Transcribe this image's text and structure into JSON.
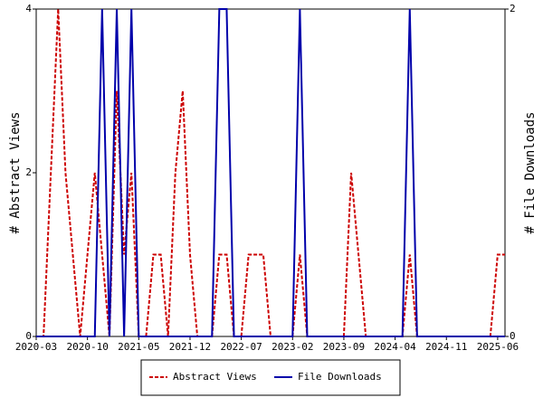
{
  "chart_data": {
    "type": "line",
    "categories": [
      "2020-03",
      null,
      null,
      null,
      null,
      null,
      null,
      "2020-10",
      null,
      null,
      null,
      null,
      null,
      null,
      "2021-05",
      null,
      null,
      null,
      null,
      null,
      null,
      "2021-12",
      null,
      null,
      null,
      null,
      null,
      null,
      "2022-07",
      null,
      null,
      null,
      null,
      null,
      null,
      "2023-02",
      null,
      null,
      null,
      null,
      null,
      null,
      "2023-09",
      null,
      null,
      null,
      null,
      null,
      null,
      "2024-04",
      null,
      null,
      null,
      null,
      null,
      null,
      "2024-11",
      null,
      null,
      null,
      null,
      null,
      null,
      "2025-06",
      null
    ],
    "ylabel": "# Abstract Views",
    "y2label": "# File Downloads",
    "ylim": [
      0,
      4
    ],
    "yticks": [
      0,
      2,
      4
    ],
    "y2lim": [
      0,
      2
    ],
    "y2ticks": [
      0,
      2
    ],
    "legend": "bottom",
    "series": [
      {
        "name": "Abstract Views",
        "color": "#cc0000",
        "dash": true,
        "values": [
          0,
          0,
          2,
          4,
          2,
          1,
          0,
          1,
          2,
          1,
          0,
          3,
          1,
          2,
          0,
          0,
          1,
          1,
          0,
          2,
          3,
          1,
          0,
          0,
          0,
          1,
          1,
          0,
          0,
          1,
          1,
          1,
          0,
          0,
          0,
          0,
          1,
          0,
          0,
          0,
          0,
          0,
          0,
          2,
          1,
          0,
          0,
          0,
          0,
          0,
          0,
          1,
          0,
          0,
          0,
          0,
          0,
          0,
          0,
          0,
          0,
          0,
          0,
          1,
          1
        ]
      },
      {
        "name": "File Downloads",
        "color": "#0000aa",
        "dash": false,
        "axis": "y2",
        "values": [
          0,
          0,
          0,
          0,
          0,
          0,
          0,
          0,
          0,
          2,
          0,
          2,
          0,
          2,
          0,
          0,
          0,
          0,
          0,
          0,
          0,
          0,
          0,
          0,
          0,
          2,
          2,
          0,
          0,
          0,
          0,
          0,
          0,
          0,
          0,
          0,
          2,
          0,
          0,
          0,
          0,
          0,
          0,
          0,
          0,
          0,
          0,
          0,
          0,
          0,
          0,
          2,
          0,
          0,
          0,
          0,
          0,
          0,
          0,
          0,
          0,
          0,
          0,
          0,
          0
        ]
      }
    ]
  }
}
